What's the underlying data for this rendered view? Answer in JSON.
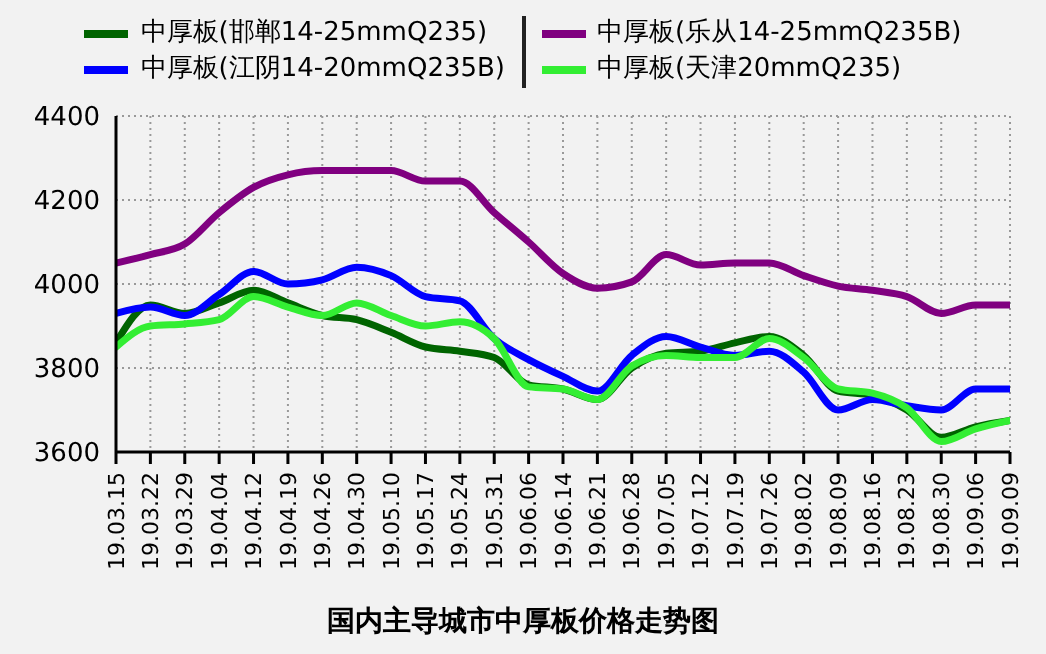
{
  "chart_data": {
    "type": "line",
    "title": "国内主导城市中厚板价格走势图",
    "categories": [
      "19.03.15",
      "19.03.22",
      "19.03.29",
      "19.04.04",
      "19.04.12",
      "19.04.19",
      "19.04.26",
      "19.04.30",
      "19.05.10",
      "19.05.17",
      "19.05.24",
      "19.05.31",
      "19.06.06",
      "19.06.14",
      "19.06.21",
      "19.06.28",
      "19.07.05",
      "19.07.12",
      "19.07.19",
      "19.07.26",
      "19.08.02",
      "19.08.09",
      "19.08.16",
      "19.08.23",
      "19.08.30",
      "19.09.06",
      "19.09.09"
    ],
    "series": [
      {
        "name": "中厚板(邯郸14-25mmQ235)",
        "color": "#006400",
        "values": [
          3860,
          3950,
          3930,
          3955,
          3985,
          3955,
          3925,
          3915,
          3885,
          3850,
          3840,
          3825,
          3760,
          3750,
          3725,
          3800,
          3835,
          3840,
          3860,
          3875,
          3830,
          3745,
          3735,
          3700,
          3635,
          3660,
          3675
        ]
      },
      {
        "name": "中厚板(江阴14-20mmQ235B)",
        "color": "#0000ff",
        "values": [
          3930,
          3945,
          3925,
          3975,
          4030,
          4000,
          4010,
          4040,
          4020,
          3970,
          3960,
          3870,
          3820,
          3780,
          3745,
          3830,
          3875,
          3850,
          3830,
          3840,
          3790,
          3700,
          3725,
          3710,
          3700,
          3750,
          3750
        ]
      },
      {
        "name": "中厚板(乐从14-25mmQ235B)",
        "color": "#800080",
        "values": [
          4050,
          4070,
          4095,
          4170,
          4230,
          4260,
          4270,
          4270,
          4270,
          4245,
          4245,
          4170,
          4100,
          4025,
          3990,
          4005,
          4070,
          4045,
          4050,
          4050,
          4020,
          3995,
          3985,
          3970,
          3930,
          3950,
          3950
        ]
      },
      {
        "name": "中厚板(天津20mmQ235)",
        "color": "#33ee33",
        "values": [
          3850,
          3900,
          3905,
          3915,
          3970,
          3945,
          3925,
          3955,
          3925,
          3900,
          3910,
          3870,
          3755,
          3750,
          3725,
          3805,
          3830,
          3825,
          3825,
          3870,
          3825,
          3750,
          3740,
          3705,
          3625,
          3655,
          3675
        ]
      }
    ],
    "ylim": [
      3600,
      4400
    ],
    "yticks": [
      3600,
      3800,
      4000,
      4200,
      4400
    ],
    "grid": true,
    "legend": "top",
    "marker": "none",
    "line_style": "solid"
  }
}
